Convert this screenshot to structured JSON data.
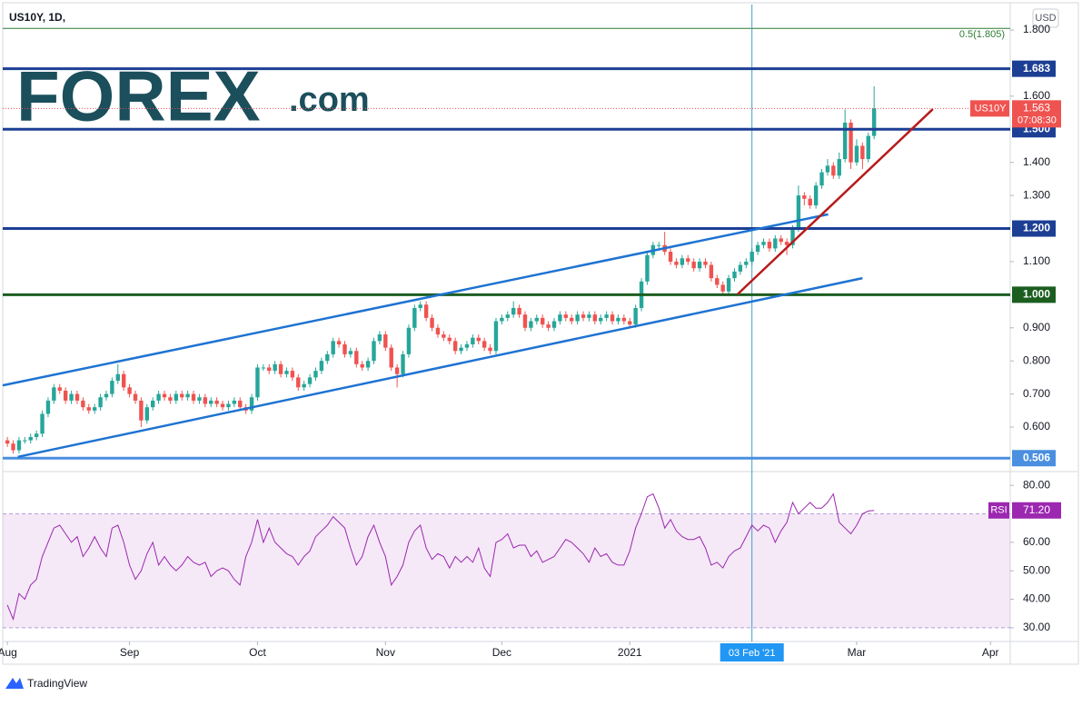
{
  "chart_data": {
    "type": "candlestick",
    "title": "US10Y, 1D,",
    "currency": "USD",
    "logo": {
      "brand": "FOREX",
      "suffix": ".com"
    },
    "footer": "TradingView",
    "up_color": "#26a69a",
    "down_color": "#ef5350",
    "xlim": [
      -0.8,
      172.4
    ],
    "xticks": [
      {
        "value": 0,
        "label": "Aug"
      },
      {
        "value": 21,
        "label": "Sep"
      },
      {
        "value": 43,
        "label": "Oct"
      },
      {
        "value": 65,
        "label": "Nov"
      },
      {
        "value": 85,
        "label": "Dec"
      },
      {
        "value": 107,
        "label": "2021"
      },
      {
        "value": 146,
        "label": "Mar"
      },
      {
        "value": 169,
        "label": "Apr"
      }
    ],
    "crosshair": {
      "value": 128,
      "label": "03 Feb '21",
      "color": "#3f9fc9"
    },
    "ylim": [
      0.471,
      1.877
    ],
    "yticks": [
      {
        "value": 0.6,
        "label": "0.600"
      },
      {
        "value": 0.7,
        "label": "0.700"
      },
      {
        "value": 0.8,
        "label": "0.800"
      },
      {
        "value": 0.9,
        "label": "0.900"
      },
      {
        "value": 1.1,
        "label": "1.100"
      },
      {
        "value": 1.3,
        "label": "1.300"
      },
      {
        "value": 1.4,
        "label": "1.400"
      },
      {
        "value": 1.6,
        "label": "1.600"
      },
      {
        "value": 1.8,
        "label": "1.800"
      }
    ],
    "levels": [
      {
        "value": 1.683,
        "label": "1.683",
        "color": "#1c3f94"
      },
      {
        "value": 1.5,
        "label": "1.500",
        "color": "#1c3f94"
      },
      {
        "value": 1.2,
        "label": "1.200",
        "color": "#1c3f94"
      },
      {
        "value": 1,
        "label": "1.000",
        "color": "#1b5e20"
      },
      {
        "value": 0.506,
        "label": "0.506",
        "color": "#4a8fe0"
      }
    ],
    "fib": {
      "value": 1.805,
      "label": "0.5(1.805)",
      "color": "#2e7d32"
    },
    "trendlines": [
      {
        "x": [
          -0.8,
          141.1
        ],
        "y": [
          0.726,
          1.243
        ],
        "color": "#1e73d2"
      },
      {
        "x": [
          1.8,
          147
        ],
        "y": [
          0.51,
          1.05
        ],
        "color": "#1e73d2"
      },
      {
        "x": [
          125.5,
          159.1
        ],
        "y": [
          1.001,
          1.561
        ],
        "color": "#b71c1c"
      }
    ],
    "last": {
      "symbol": "US10Y",
      "countdown": "07:08:30",
      "color": "#ef5350"
    },
    "candles": [
      [
        0,
        0.56,
        0.57,
        0.54,
        0.55
      ],
      [
        1,
        0.55,
        0.56,
        0.52,
        0.53
      ],
      [
        2,
        0.53,
        0.57,
        0.52,
        0.56
      ],
      [
        3,
        0.56,
        0.57,
        0.55,
        0.56
      ],
      [
        4,
        0.56,
        0.58,
        0.55,
        0.57
      ],
      [
        5,
        0.57,
        0.59,
        0.56,
        0.58
      ],
      [
        6,
        0.58,
        0.65,
        0.57,
        0.64
      ],
      [
        7,
        0.64,
        0.69,
        0.63,
        0.68
      ],
      [
        8,
        0.68,
        0.73,
        0.67,
        0.72
      ],
      [
        9,
        0.72,
        0.73,
        0.7,
        0.71
      ],
      [
        10,
        0.71,
        0.72,
        0.67,
        0.68
      ],
      [
        11,
        0.68,
        0.71,
        0.67,
        0.7
      ],
      [
        12,
        0.7,
        0.71,
        0.67,
        0.68
      ],
      [
        13,
        0.68,
        0.69,
        0.65,
        0.66
      ],
      [
        14,
        0.66,
        0.67,
        0.64,
        0.65
      ],
      [
        15,
        0.65,
        0.67,
        0.64,
        0.66
      ],
      [
        16,
        0.66,
        0.7,
        0.65,
        0.69
      ],
      [
        17,
        0.69,
        0.71,
        0.68,
        0.7
      ],
      [
        18,
        0.7,
        0.75,
        0.69,
        0.74
      ],
      [
        19,
        0.74,
        0.79,
        0.73,
        0.76
      ],
      [
        20,
        0.76,
        0.77,
        0.71,
        0.72
      ],
      [
        21,
        0.72,
        0.73,
        0.69,
        0.7
      ],
      [
        22,
        0.7,
        0.71,
        0.67,
        0.68
      ],
      [
        23,
        0.68,
        0.69,
        0.6,
        0.62
      ],
      [
        24,
        0.62,
        0.67,
        0.61,
        0.66
      ],
      [
        25,
        0.66,
        0.69,
        0.65,
        0.68
      ],
      [
        26,
        0.68,
        0.71,
        0.67,
        0.7
      ],
      [
        27,
        0.7,
        0.71,
        0.68,
        0.69
      ],
      [
        28,
        0.69,
        0.7,
        0.67,
        0.68
      ],
      [
        29,
        0.68,
        0.71,
        0.67,
        0.7
      ],
      [
        30,
        0.7,
        0.71,
        0.68,
        0.69
      ],
      [
        31,
        0.69,
        0.71,
        0.68,
        0.7
      ],
      [
        32,
        0.7,
        0.71,
        0.67,
        0.68
      ],
      [
        33,
        0.68,
        0.7,
        0.67,
        0.69
      ],
      [
        34,
        0.69,
        0.7,
        0.66,
        0.67
      ],
      [
        35,
        0.67,
        0.69,
        0.66,
        0.68
      ],
      [
        36,
        0.68,
        0.69,
        0.66,
        0.67
      ],
      [
        37,
        0.67,
        0.68,
        0.65,
        0.66
      ],
      [
        38,
        0.66,
        0.68,
        0.65,
        0.67
      ],
      [
        39,
        0.67,
        0.69,
        0.66,
        0.68
      ],
      [
        40,
        0.68,
        0.69,
        0.65,
        0.66
      ],
      [
        41,
        0.66,
        0.67,
        0.64,
        0.65
      ],
      [
        42,
        0.65,
        0.7,
        0.64,
        0.69
      ],
      [
        43,
        0.69,
        0.79,
        0.68,
        0.78
      ],
      [
        44,
        0.78,
        0.79,
        0.77,
        0.78
      ],
      [
        45,
        0.78,
        0.79,
        0.76,
        0.77
      ],
      [
        46,
        0.77,
        0.8,
        0.76,
        0.79
      ],
      [
        47,
        0.79,
        0.8,
        0.75,
        0.76
      ],
      [
        48,
        0.76,
        0.78,
        0.75,
        0.77
      ],
      [
        49,
        0.77,
        0.78,
        0.74,
        0.75
      ],
      [
        50,
        0.75,
        0.76,
        0.71,
        0.72
      ],
      [
        51,
        0.72,
        0.74,
        0.71,
        0.73
      ],
      [
        52,
        0.73,
        0.76,
        0.72,
        0.75
      ],
      [
        53,
        0.75,
        0.78,
        0.74,
        0.77
      ],
      [
        54,
        0.77,
        0.81,
        0.76,
        0.8
      ],
      [
        55,
        0.8,
        0.83,
        0.79,
        0.82
      ],
      [
        56,
        0.82,
        0.87,
        0.81,
        0.86
      ],
      [
        57,
        0.86,
        0.87,
        0.84,
        0.85
      ],
      [
        58,
        0.85,
        0.86,
        0.81,
        0.82
      ],
      [
        59,
        0.82,
        0.84,
        0.81,
        0.83
      ],
      [
        60,
        0.83,
        0.84,
        0.78,
        0.79
      ],
      [
        61,
        0.79,
        0.8,
        0.77,
        0.78
      ],
      [
        62,
        0.78,
        0.81,
        0.77,
        0.8
      ],
      [
        63,
        0.8,
        0.87,
        0.79,
        0.86
      ],
      [
        64,
        0.86,
        0.89,
        0.85,
        0.88
      ],
      [
        65,
        0.88,
        0.89,
        0.83,
        0.84
      ],
      [
        66,
        0.84,
        0.85,
        0.77,
        0.78
      ],
      [
        67,
        0.78,
        0.79,
        0.72,
        0.76
      ],
      [
        68,
        0.76,
        0.83,
        0.75,
        0.82
      ],
      [
        69,
        0.82,
        0.91,
        0.81,
        0.9
      ],
      [
        70,
        0.9,
        0.97,
        0.89,
        0.96
      ],
      [
        71,
        0.96,
        0.98,
        0.95,
        0.97
      ],
      [
        72,
        0.97,
        0.98,
        0.92,
        0.93
      ],
      [
        73,
        0.93,
        0.94,
        0.89,
        0.9
      ],
      [
        74,
        0.9,
        0.91,
        0.87,
        0.88
      ],
      [
        75,
        0.88,
        0.89,
        0.86,
        0.87
      ],
      [
        76,
        0.87,
        0.88,
        0.85,
        0.86
      ],
      [
        77,
        0.86,
        0.87,
        0.82,
        0.83
      ],
      [
        78,
        0.83,
        0.85,
        0.82,
        0.84
      ],
      [
        79,
        0.84,
        0.86,
        0.83,
        0.85
      ],
      [
        80,
        0.85,
        0.88,
        0.84,
        0.87
      ],
      [
        81,
        0.87,
        0.88,
        0.85,
        0.86
      ],
      [
        82,
        0.86,
        0.87,
        0.83,
        0.84
      ],
      [
        83,
        0.84,
        0.85,
        0.82,
        0.83
      ],
      [
        84,
        0.83,
        0.93,
        0.82,
        0.92
      ],
      [
        85,
        0.92,
        0.94,
        0.91,
        0.93
      ],
      [
        86,
        0.93,
        0.95,
        0.92,
        0.94
      ],
      [
        87,
        0.94,
        0.98,
        0.93,
        0.96
      ],
      [
        88,
        0.96,
        0.97,
        0.93,
        0.94
      ],
      [
        89,
        0.94,
        0.95,
        0.89,
        0.9
      ],
      [
        90,
        0.9,
        0.93,
        0.89,
        0.92
      ],
      [
        91,
        0.92,
        0.94,
        0.91,
        0.93
      ],
      [
        92,
        0.93,
        0.94,
        0.9,
        0.91
      ],
      [
        93,
        0.91,
        0.92,
        0.89,
        0.9
      ],
      [
        94,
        0.9,
        0.93,
        0.89,
        0.92
      ],
      [
        95,
        0.92,
        0.95,
        0.91,
        0.94
      ],
      [
        96,
        0.94,
        0.95,
        0.92,
        0.93
      ],
      [
        97,
        0.93,
        0.94,
        0.91,
        0.92
      ],
      [
        98,
        0.92,
        0.95,
        0.91,
        0.94
      ],
      [
        99,
        0.94,
        0.95,
        0.92,
        0.93
      ],
      [
        100,
        0.93,
        0.95,
        0.92,
        0.94
      ],
      [
        101,
        0.94,
        0.95,
        0.91,
        0.92
      ],
      [
        102,
        0.92,
        0.94,
        0.91,
        0.93
      ],
      [
        103,
        0.93,
        0.95,
        0.92,
        0.94
      ],
      [
        104,
        0.94,
        0.95,
        0.91,
        0.92
      ],
      [
        105,
        0.92,
        0.94,
        0.91,
        0.93
      ],
      [
        106,
        0.93,
        0.94,
        0.91,
        0.92
      ],
      [
        107,
        0.92,
        0.93,
        0.9,
        0.91
      ],
      [
        108,
        0.91,
        0.97,
        0.9,
        0.96
      ],
      [
        109,
        0.96,
        1.05,
        0.95,
        1.04
      ],
      [
        110,
        1.04,
        1.13,
        1.03,
        1.12
      ],
      [
        111,
        1.12,
        1.16,
        1.11,
        1.15
      ],
      [
        112,
        1.15,
        1.16,
        1.14,
        1.15
      ],
      [
        113,
        1.15,
        1.19,
        1.12,
        1.13
      ],
      [
        114,
        1.13,
        1.14,
        1.09,
        1.1
      ],
      [
        115,
        1.1,
        1.11,
        1.08,
        1.09
      ],
      [
        116,
        1.09,
        1.12,
        1.08,
        1.11
      ],
      [
        117,
        1.11,
        1.12,
        1.09,
        1.1
      ],
      [
        118,
        1.1,
        1.11,
        1.07,
        1.08
      ],
      [
        119,
        1.08,
        1.11,
        1.07,
        1.1
      ],
      [
        120,
        1.1,
        1.11,
        1.08,
        1.09
      ],
      [
        121,
        1.09,
        1.1,
        1.04,
        1.05
      ],
      [
        122,
        1.05,
        1.06,
        1.02,
        1.03
      ],
      [
        123,
        1.03,
        1.04,
        1.0,
        1.01
      ],
      [
        124,
        1.01,
        1.06,
        1.0,
        1.05
      ],
      [
        125,
        1.05,
        1.08,
        1.04,
        1.07
      ],
      [
        126,
        1.07,
        1.1,
        1.06,
        1.09
      ],
      [
        127,
        1.09,
        1.11,
        1.08,
        1.1
      ],
      [
        128,
        1.1,
        1.14,
        1.09,
        1.13
      ],
      [
        129,
        1.13,
        1.16,
        1.12,
        1.15
      ],
      [
        130,
        1.15,
        1.17,
        1.14,
        1.16
      ],
      [
        131,
        1.16,
        1.17,
        1.13,
        1.14
      ],
      [
        132,
        1.14,
        1.18,
        1.13,
        1.17
      ],
      [
        133,
        1.17,
        1.18,
        1.15,
        1.16
      ],
      [
        134,
        1.16,
        1.17,
        1.12,
        1.15
      ],
      [
        135,
        1.15,
        1.21,
        1.14,
        1.2
      ],
      [
        136,
        1.2,
        1.33,
        1.19,
        1.3
      ],
      [
        137,
        1.3,
        1.31,
        1.27,
        1.29
      ],
      [
        138,
        1.29,
        1.3,
        1.26,
        1.27
      ],
      [
        139,
        1.27,
        1.34,
        1.26,
        1.33
      ],
      [
        140,
        1.33,
        1.38,
        1.32,
        1.37
      ],
      [
        141,
        1.37,
        1.41,
        1.36,
        1.39
      ],
      [
        142,
        1.39,
        1.4,
        1.35,
        1.36
      ],
      [
        143,
        1.36,
        1.43,
        1.35,
        1.41
      ],
      [
        144,
        1.41,
        1.56,
        1.4,
        1.52
      ],
      [
        145,
        1.52,
        1.53,
        1.38,
        1.4
      ],
      [
        146,
        1.4,
        1.47,
        1.39,
        1.45
      ],
      [
        147,
        1.45,
        1.46,
        1.38,
        1.41
      ],
      [
        148,
        1.41,
        1.49,
        1.4,
        1.48
      ],
      [
        149,
        1.48,
        1.63,
        1.47,
        1.563
      ]
    ],
    "rsi": {
      "name": "RSI",
      "color": "#9c27b0",
      "ylim": [
        25.5,
        84.2
      ],
      "band": [
        30,
        70
      ],
      "value_label": "71.20",
      "yticks": [
        {
          "value": 30,
          "label": "30.00"
        },
        {
          "value": 40,
          "label": "40.00"
        },
        {
          "value": 50,
          "label": "50.00"
        },
        {
          "value": 60,
          "label": "60.00"
        },
        {
          "value": 80,
          "label": "80.00"
        }
      ],
      "values": [
        38,
        33,
        42,
        40,
        45,
        47,
        55,
        60,
        65,
        66,
        63,
        60,
        62,
        55,
        58,
        62,
        58,
        55,
        65,
        66,
        60,
        52,
        47,
        50,
        56,
        60,
        52,
        55,
        52,
        50,
        52,
        55,
        53,
        52,
        53,
        48,
        50,
        51,
        50,
        47,
        45,
        55,
        60,
        68,
        60,
        65,
        60,
        58,
        56,
        55,
        52,
        55,
        57,
        62,
        64,
        66,
        69,
        67,
        65,
        58,
        52,
        55,
        62,
        66,
        60,
        55,
        45,
        48,
        52,
        60,
        64,
        66,
        58,
        54,
        56,
        55,
        51,
        55,
        53,
        55,
        53,
        58,
        51,
        48,
        60,
        61,
        63,
        58,
        59,
        59,
        55,
        57,
        53,
        54,
        55,
        58,
        61,
        60,
        58,
        56,
        53,
        58,
        55,
        56,
        53,
        52,
        52,
        57,
        65,
        70,
        76,
        77,
        72,
        65,
        68,
        64,
        62,
        61,
        61,
        62,
        58,
        52,
        53,
        51,
        55,
        57,
        58,
        62,
        66,
        64,
        66,
        65,
        60,
        64,
        67,
        74,
        70,
        72,
        74,
        72,
        72,
        74,
        77,
        67,
        65,
        63,
        66,
        70,
        71,
        71.2
      ]
    }
  }
}
